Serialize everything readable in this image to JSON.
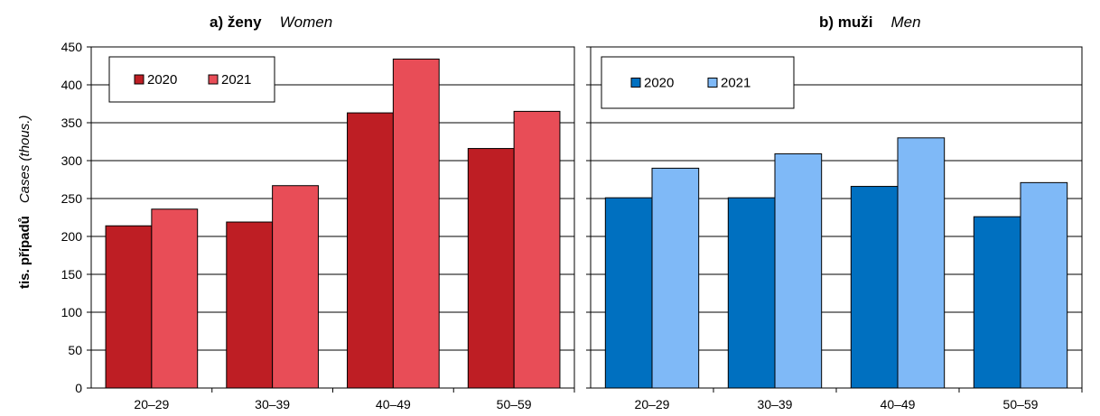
{
  "ylabel": {
    "cz": "tis. případů",
    "en": "Cases (thous.)"
  },
  "chart_data": [
    {
      "type": "bar",
      "title": {
        "cz": "a) ženy",
        "en": "Women"
      },
      "categories": [
        "20–29",
        "30–39",
        "40–49",
        "50–59"
      ],
      "series": [
        {
          "name": "2020",
          "values": [
            214,
            219,
            363,
            316
          ],
          "color": "#be1e24"
        },
        {
          "name": "2021",
          "values": [
            236,
            267,
            434,
            365
          ],
          "color": "#e84d57"
        }
      ],
      "ylim": [
        0,
        450
      ],
      "yticks": [
        "0",
        "50",
        "100",
        "150",
        "200",
        "250",
        "300",
        "350",
        "400",
        "450"
      ],
      "grid": true,
      "legend": "top-left"
    },
    {
      "type": "bar",
      "title": {
        "cz": "b) muži",
        "en": "Men"
      },
      "categories": [
        "20–29",
        "30–39",
        "40–49",
        "50–59"
      ],
      "series": [
        {
          "name": "2020",
          "values": [
            251,
            251,
            266,
            226
          ],
          "color": "#0070c0"
        },
        {
          "name": "2021",
          "values": [
            290,
            309,
            330,
            271
          ],
          "color": "#7fb9f7"
        }
      ],
      "ylim": [
        0,
        450
      ],
      "grid": true,
      "legend": "top-left"
    }
  ]
}
